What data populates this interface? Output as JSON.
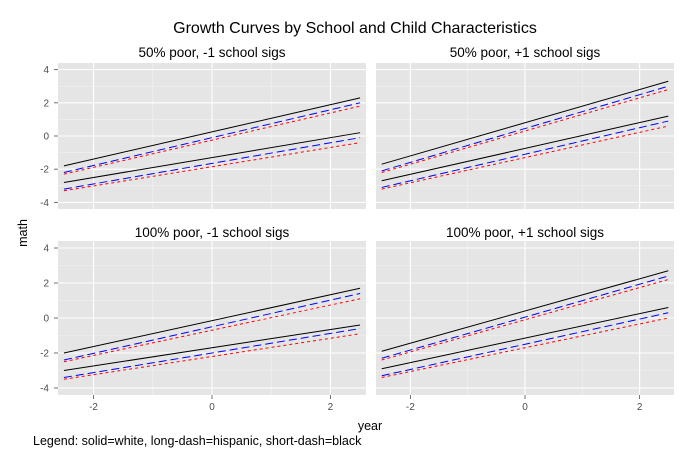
{
  "chart_data": {
    "type": "line",
    "title": "Growth Curves by School and Child Characteristics",
    "xlabel": "year",
    "ylabel": "math",
    "xlim": [
      -2.6,
      2.6
    ],
    "ylim": [
      -4.4,
      4.4
    ],
    "x_ticks": [
      -2,
      0,
      2
    ],
    "y_ticks": [
      -4,
      -2,
      0,
      2,
      4
    ],
    "grid": true,
    "legend_note": "Legend: solid=white, long-dash=hispanic, short-dash=black",
    "colors": {
      "white": "#000000",
      "hispanic": "#0000ff",
      "black": "#ff0000",
      "panel_bg": "#e5e5e5",
      "grid": "#ffffff"
    },
    "panels": [
      {
        "title": "50% poor, -1 school sigs",
        "series": [
          {
            "group": "upper",
            "style": "solid",
            "color": "#000000",
            "x": [
              -2.5,
              2.5
            ],
            "y": [
              -1.8,
              2.3
            ]
          },
          {
            "group": "upper",
            "style": "long-dash",
            "color": "#0000ff",
            "x": [
              -2.5,
              2.5
            ],
            "y": [
              -2.2,
              2.0
            ]
          },
          {
            "group": "upper",
            "style": "short-dash",
            "color": "#ff0000",
            "x": [
              -2.5,
              2.5
            ],
            "y": [
              -2.3,
              1.8
            ]
          },
          {
            "group": "lower",
            "style": "solid",
            "color": "#000000",
            "x": [
              -2.5,
              2.5
            ],
            "y": [
              -2.8,
              0.2
            ]
          },
          {
            "group": "lower",
            "style": "long-dash",
            "color": "#0000ff",
            "x": [
              -2.5,
              2.5
            ],
            "y": [
              -3.2,
              -0.1
            ]
          },
          {
            "group": "lower",
            "style": "short-dash",
            "color": "#ff0000",
            "x": [
              -2.5,
              2.5
            ],
            "y": [
              -3.3,
              -0.4
            ]
          }
        ]
      },
      {
        "title": "50% poor, +1 school sigs",
        "series": [
          {
            "group": "upper",
            "style": "solid",
            "color": "#000000",
            "x": [
              -2.5,
              2.5
            ],
            "y": [
              -1.7,
              3.3
            ]
          },
          {
            "group": "upper",
            "style": "long-dash",
            "color": "#0000ff",
            "x": [
              -2.5,
              2.5
            ],
            "y": [
              -2.1,
              3.0
            ]
          },
          {
            "group": "upper",
            "style": "short-dash",
            "color": "#ff0000",
            "x": [
              -2.5,
              2.5
            ],
            "y": [
              -2.2,
              2.8
            ]
          },
          {
            "group": "lower",
            "style": "solid",
            "color": "#000000",
            "x": [
              -2.5,
              2.5
            ],
            "y": [
              -2.7,
              1.2
            ]
          },
          {
            "group": "lower",
            "style": "long-dash",
            "color": "#0000ff",
            "x": [
              -2.5,
              2.5
            ],
            "y": [
              -3.1,
              0.9
            ]
          },
          {
            "group": "lower",
            "style": "short-dash",
            "color": "#ff0000",
            "x": [
              -2.5,
              2.5
            ],
            "y": [
              -3.2,
              0.6
            ]
          }
        ]
      },
      {
        "title": "100% poor, -1 school sigs",
        "series": [
          {
            "group": "upper",
            "style": "solid",
            "color": "#000000",
            "x": [
              -2.5,
              2.5
            ],
            "y": [
              -2.0,
              1.7
            ]
          },
          {
            "group": "upper",
            "style": "long-dash",
            "color": "#0000ff",
            "x": [
              -2.5,
              2.5
            ],
            "y": [
              -2.4,
              1.4
            ]
          },
          {
            "group": "upper",
            "style": "short-dash",
            "color": "#ff0000",
            "x": [
              -2.5,
              2.5
            ],
            "y": [
              -2.5,
              1.1
            ]
          },
          {
            "group": "lower",
            "style": "solid",
            "color": "#000000",
            "x": [
              -2.5,
              2.5
            ],
            "y": [
              -3.0,
              -0.4
            ]
          },
          {
            "group": "lower",
            "style": "long-dash",
            "color": "#0000ff",
            "x": [
              -2.5,
              2.5
            ],
            "y": [
              -3.4,
              -0.6
            ]
          },
          {
            "group": "lower",
            "style": "short-dash",
            "color": "#ff0000",
            "x": [
              -2.5,
              2.5
            ],
            "y": [
              -3.5,
              -0.9
            ]
          }
        ]
      },
      {
        "title": "100% poor, +1 school sigs",
        "series": [
          {
            "group": "upper",
            "style": "solid",
            "color": "#000000",
            "x": [
              -2.5,
              2.5
            ],
            "y": [
              -1.9,
              2.7
            ]
          },
          {
            "group": "upper",
            "style": "long-dash",
            "color": "#0000ff",
            "x": [
              -2.5,
              2.5
            ],
            "y": [
              -2.3,
              2.4
            ]
          },
          {
            "group": "upper",
            "style": "short-dash",
            "color": "#ff0000",
            "x": [
              -2.5,
              2.5
            ],
            "y": [
              -2.4,
              2.2
            ]
          },
          {
            "group": "lower",
            "style": "solid",
            "color": "#000000",
            "x": [
              -2.5,
              2.5
            ],
            "y": [
              -2.9,
              0.6
            ]
          },
          {
            "group": "lower",
            "style": "long-dash",
            "color": "#0000ff",
            "x": [
              -2.5,
              2.5
            ],
            "y": [
              -3.3,
              0.3
            ]
          },
          {
            "group": "lower",
            "style": "short-dash",
            "color": "#ff0000",
            "x": [
              -2.5,
              2.5
            ],
            "y": [
              -3.4,
              0.0
            ]
          }
        ]
      }
    ]
  }
}
